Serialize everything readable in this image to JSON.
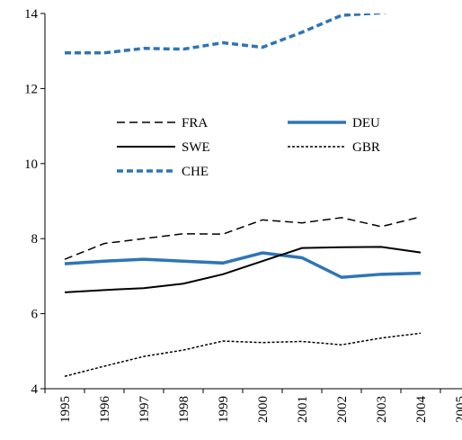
{
  "chart_data": {
    "type": "line",
    "categories": [
      "1995",
      "1996",
      "1997",
      "1998",
      "1999",
      "2000",
      "2001",
      "2002",
      "2003",
      "2004",
      "2005"
    ],
    "ylim": [
      4,
      14
    ],
    "yticks": [
      4,
      6,
      8,
      10,
      12,
      14
    ],
    "series": [
      {
        "name": "FRA",
        "color": "#000000",
        "line_style": "dashed",
        "values": [
          7.45,
          7.87,
          8.0,
          8.13,
          8.12,
          8.5,
          8.42,
          8.56,
          8.32,
          8.58,
          null
        ]
      },
      {
        "name": "DEU",
        "color": "#2e75b6",
        "line_style": "thick",
        "values": [
          7.33,
          7.4,
          7.45,
          7.4,
          7.35,
          7.62,
          7.49,
          6.97,
          7.05,
          7.08,
          null
        ]
      },
      {
        "name": "SWE",
        "color": "#000000",
        "line_style": "solid",
        "values": [
          6.57,
          6.63,
          6.68,
          6.8,
          7.05,
          7.4,
          7.75,
          7.77,
          7.78,
          7.63,
          null
        ]
      },
      {
        "name": "GBR",
        "color": "#000000",
        "line_style": "dotted",
        "values": [
          4.33,
          4.6,
          4.86,
          5.03,
          5.27,
          5.23,
          5.26,
          5.17,
          5.35,
          5.48,
          null
        ]
      },
      {
        "name": "CHE",
        "color": "#2e75b6",
        "line_style": "thick-dashed",
        "values": [
          12.95,
          12.95,
          13.07,
          13.05,
          13.22,
          13.1,
          13.5,
          13.95,
          14.02,
          14.15,
          null
        ]
      }
    ]
  }
}
